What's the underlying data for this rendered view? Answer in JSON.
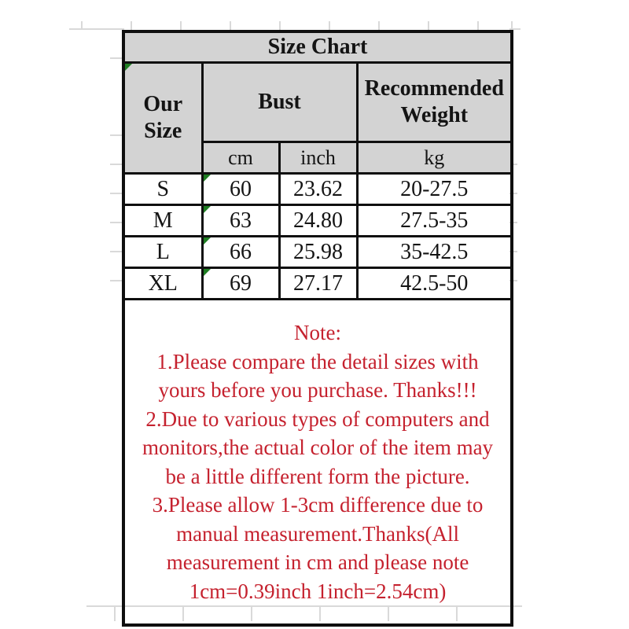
{
  "table": {
    "title": "Size Chart",
    "columns": {
      "our_size": "Our Size",
      "bust": "Bust",
      "recommended_weight": "Recommended Weight",
      "bust_unit_cm": "cm",
      "bust_unit_inch": "inch",
      "weight_unit_kg": "kg"
    },
    "rows": [
      {
        "size": "S",
        "bust_cm": "60",
        "bust_inch": "23.62",
        "weight_kg": "20-27.5"
      },
      {
        "size": "M",
        "bust_cm": "63",
        "bust_inch": "24.80",
        "weight_kg": "27.5-35"
      },
      {
        "size": "L",
        "bust_cm": "66",
        "bust_inch": "25.98",
        "weight_kg": "35-42.5"
      },
      {
        "size": "XL",
        "bust_cm": "69",
        "bust_inch": "27.17",
        "weight_kg": "42.5-50"
      }
    ]
  },
  "note": {
    "lines": [
      "Note:",
      "1.Please compare the detail sizes with",
      "yours before you purchase. Thanks!!!",
      "2.Due to various types of computers and",
      "monitors,the actual color of the item may",
      "be a little different form the picture.",
      "3.Please allow 1-3cm difference due to",
      "manual measurement.Thanks(All",
      "measurement in cm and please note",
      "1cm=0.39inch 1inch=2.54cm)"
    ]
  },
  "icons": {
    "cell_error_flag": "excel-green-triangle"
  },
  "colors": {
    "background": "#ffffff",
    "header_fill": "#d3d3d3",
    "table_border": "#0f0f0f",
    "text": "#141414",
    "note_text": "#c5212e",
    "flag_green": "#1f7e23",
    "gridline": "#d9d9d9"
  }
}
